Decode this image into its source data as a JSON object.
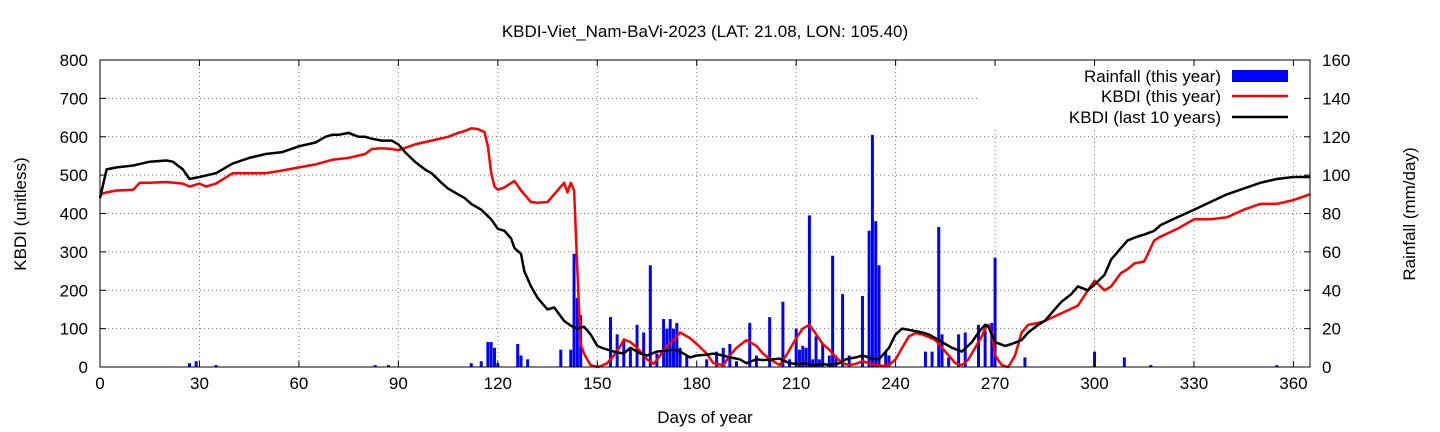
{
  "chart_data": {
    "type": "bar+line",
    "title": "KBDI-Viet_Nam-BaVi-2023 (LAT: 21.08, LON: 105.40)",
    "xlabel": "Days of year",
    "ylabel": "KBDI (unitless)",
    "y2label": "Rainfall (mm/day)",
    "xlim": [
      0,
      365
    ],
    "ylim": [
      0,
      800
    ],
    "y2lim": [
      0,
      160
    ],
    "xticks": [
      0,
      30,
      60,
      90,
      120,
      150,
      180,
      210,
      240,
      270,
      300,
      330,
      360
    ],
    "yticks": [
      0,
      100,
      200,
      300,
      400,
      500,
      600,
      700,
      800
    ],
    "y2ticks": [
      0,
      20,
      40,
      60,
      80,
      100,
      120,
      140,
      160
    ],
    "grid": true,
    "legend_position": "top-right",
    "colors": {
      "rainfall": "#0000ff",
      "kbdi_this_year": "#ff0000",
      "kbdi_10yr": "#000000"
    },
    "series": [
      {
        "name": "Rainfall (this year)",
        "kind": "bar",
        "axis": "y2",
        "x": [
          27,
          29,
          35,
          83,
          87,
          112,
          115,
          117,
          118,
          119,
          120,
          126,
          127,
          129,
          139,
          142,
          143,
          144,
          145,
          154,
          156,
          158,
          160,
          162,
          164,
          166,
          168,
          170,
          171,
          172,
          173,
          174,
          175,
          177,
          183,
          186,
          188,
          190,
          192,
          196,
          198,
          202,
          206,
          208,
          210,
          211,
          212,
          213,
          214,
          215,
          216,
          217,
          218,
          220,
          221,
          222,
          224,
          226,
          230,
          232,
          233,
          234,
          235,
          237,
          238,
          249,
          251,
          253,
          254,
          256,
          259,
          261,
          265,
          267,
          269,
          270,
          279,
          300,
          309,
          317,
          355
        ],
        "values": [
          2,
          3,
          1,
          1,
          1,
          2,
          3,
          13,
          13,
          10,
          2,
          12,
          6,
          4,
          9,
          9,
          59,
          36,
          27,
          26,
          17,
          14,
          9,
          22,
          18,
          53,
          7,
          25,
          20,
          25,
          20,
          23,
          10,
          6,
          4,
          8,
          10,
          12,
          3,
          23,
          6,
          26,
          34,
          4,
          20,
          9,
          11,
          10,
          79,
          4,
          16,
          4,
          12,
          6,
          58,
          6,
          38,
          6,
          37,
          71,
          121,
          76,
          53,
          8,
          6,
          8,
          8,
          73,
          17,
          5,
          17,
          18,
          22,
          19,
          23,
          57,
          5,
          8,
          5,
          1,
          1
        ]
      },
      {
        "name": "KBDI (this year)",
        "kind": "line",
        "axis": "y",
        "x": [
          0,
          2,
          5,
          10,
          12,
          15,
          20,
          25,
          27,
          30,
          32,
          35,
          40,
          45,
          50,
          55,
          60,
          65,
          70,
          75,
          80,
          82,
          85,
          88,
          90,
          95,
          100,
          105,
          108,
          110,
          112,
          114,
          116,
          117,
          118,
          119,
          120,
          122,
          125,
          127,
          129,
          130,
          132,
          135,
          137,
          139,
          140,
          141,
          142,
          143,
          144,
          145,
          146,
          148,
          150,
          151,
          153,
          155,
          157,
          158,
          160,
          162,
          163,
          165,
          167,
          169,
          171,
          173,
          175,
          178,
          180,
          183,
          185,
          188,
          190,
          192,
          195,
          198,
          200,
          203,
          205,
          207,
          209,
          210,
          212,
          214,
          216,
          218,
          220,
          222,
          224,
          226,
          228,
          230,
          232,
          234,
          236,
          238,
          240,
          242,
          244,
          246,
          248,
          250,
          252,
          254,
          256,
          258,
          260,
          262,
          264,
          266,
          267,
          268,
          269,
          270,
          272,
          274,
          276,
          278,
          280,
          283,
          285,
          290,
          295,
          298,
          300,
          303,
          305,
          308,
          310,
          312,
          315,
          318,
          320,
          325,
          330,
          335,
          340,
          345,
          350,
          355,
          360,
          365
        ],
        "values": [
          450,
          455,
          460,
          462,
          480,
          480,
          482,
          478,
          470,
          478,
          470,
          478,
          505,
          505,
          505,
          512,
          520,
          528,
          540,
          545,
          555,
          568,
          570,
          568,
          565,
          580,
          590,
          600,
          610,
          615,
          622,
          620,
          612,
          575,
          505,
          470,
          462,
          468,
          485,
          460,
          440,
          430,
          428,
          430,
          450,
          470,
          480,
          455,
          480,
          460,
          250,
          60,
          35,
          5,
          0,
          2,
          10,
          30,
          55,
          72,
          65,
          50,
          40,
          20,
          8,
          30,
          55,
          70,
          90,
          75,
          60,
          35,
          10,
          5,
          30,
          50,
          70,
          55,
          35,
          15,
          5,
          30,
          60,
          75,
          100,
          110,
          85,
          60,
          45,
          25,
          10,
          5,
          8,
          15,
          10,
          5,
          3,
          5,
          20,
          50,
          80,
          88,
          85,
          78,
          70,
          50,
          30,
          10,
          5,
          20,
          50,
          80,
          100,
          110,
          90,
          30,
          5,
          0,
          30,
          90,
          110,
          115,
          120,
          140,
          160,
          200,
          225,
          200,
          210,
          245,
          255,
          270,
          275,
          330,
          340,
          360,
          385,
          385,
          390,
          410,
          425,
          425,
          435,
          450
        ]
      },
      {
        "name": "KBDI (last 10 years)",
        "kind": "line",
        "axis": "y",
        "x": [
          0,
          2,
          5,
          10,
          15,
          20,
          22,
          25,
          27,
          30,
          35,
          40,
          45,
          50,
          55,
          60,
          65,
          68,
          70,
          72,
          75,
          78,
          80,
          82,
          85,
          88,
          90,
          92,
          95,
          98,
          100,
          103,
          105,
          108,
          110,
          112,
          115,
          118,
          120,
          122,
          124,
          125,
          127,
          128,
          130,
          132,
          135,
          137,
          140,
          142,
          144,
          146,
          148,
          150,
          152,
          155,
          158,
          160,
          163,
          165,
          168,
          170,
          173,
          175,
          178,
          180,
          183,
          185,
          188,
          190,
          193,
          195,
          198,
          200,
          203,
          205,
          208,
          210,
          213,
          215,
          218,
          220,
          223,
          225,
          228,
          230,
          233,
          235,
          238,
          240,
          242,
          245,
          248,
          250,
          252,
          255,
          257,
          260,
          263,
          265,
          267,
          268,
          270,
          273,
          275,
          278,
          280,
          283,
          285,
          288,
          290,
          293,
          295,
          298,
          300,
          303,
          305,
          308,
          310,
          313,
          315,
          318,
          320,
          325,
          330,
          335,
          340,
          345,
          350,
          355,
          360,
          365
        ],
        "values": [
          440,
          515,
          520,
          525,
          535,
          538,
          535,
          515,
          490,
          495,
          505,
          530,
          545,
          555,
          560,
          575,
          585,
          600,
          605,
          605,
          610,
          600,
          600,
          595,
          590,
          590,
          580,
          560,
          535,
          515,
          505,
          480,
          465,
          450,
          440,
          425,
          410,
          385,
          360,
          355,
          335,
          310,
          295,
          250,
          210,
          180,
          150,
          155,
          120,
          108,
          100,
          105,
          85,
          55,
          48,
          40,
          35,
          50,
          35,
          30,
          40,
          42,
          45,
          40,
          25,
          30,
          32,
          35,
          30,
          25,
          20,
          10,
          20,
          18,
          20,
          22,
          10,
          8,
          10,
          5,
          8,
          5,
          10,
          20,
          25,
          30,
          22,
          20,
          50,
          85,
          100,
          95,
          90,
          85,
          75,
          60,
          50,
          40,
          65,
          90,
          110,
          105,
          65,
          55,
          60,
          70,
          90,
          110,
          120,
          150,
          170,
          190,
          210,
          200,
          215,
          240,
          280,
          310,
          330,
          340,
          345,
          355,
          370,
          390,
          410,
          430,
          450,
          465,
          480,
          490,
          495,
          495
        ]
      }
    ]
  }
}
